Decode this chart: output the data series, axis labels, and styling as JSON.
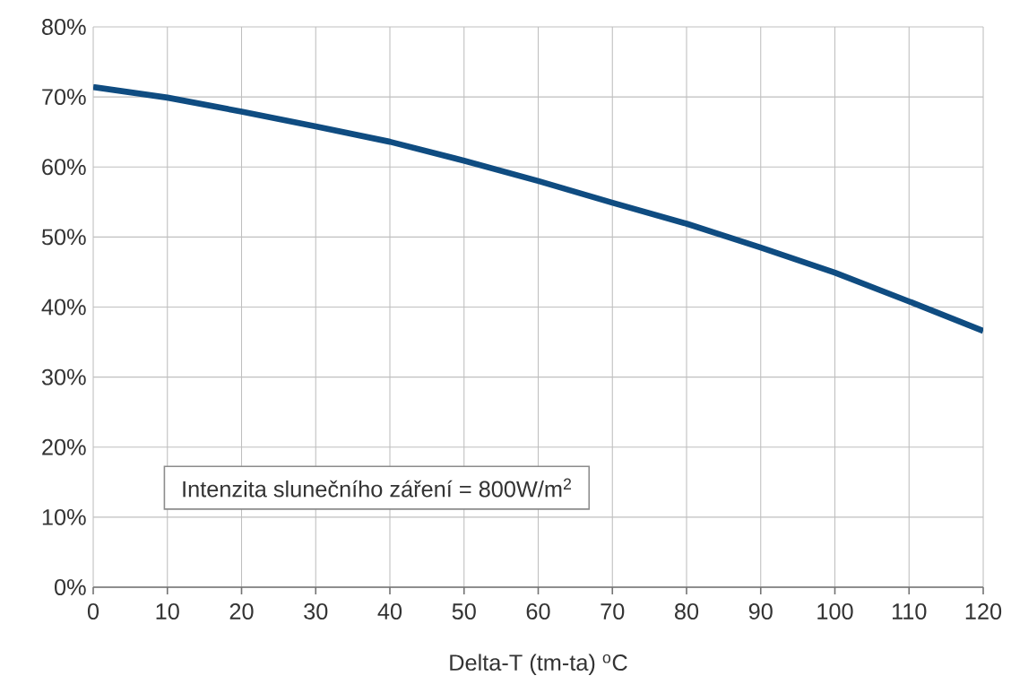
{
  "chart_data": {
    "type": "line",
    "xlabel": "Delta-T (tm-ta)  $^{o}$C",
    "x": [
      0,
      10,
      20,
      30,
      40,
      50,
      60,
      70,
      80,
      90,
      100,
      110,
      120
    ],
    "series": [
      {
        "color": "#0f4c81",
        "values": [
          71.4,
          69.9,
          67.9,
          65.8,
          63.6,
          60.9,
          58.0,
          54.9,
          51.9,
          48.5,
          44.9,
          40.8,
          36.6
        ]
      }
    ],
    "xlim": [
      0,
      120
    ],
    "xticks": [
      0,
      10,
      20,
      30,
      40,
      50,
      60,
      70,
      80,
      90,
      100,
      110,
      120
    ],
    "ylim": [
      0,
      80
    ],
    "yticks": [
      {
        "value": 0,
        "label": "0%"
      },
      {
        "value": 10,
        "label": "10%"
      },
      {
        "value": 20,
        "label": "20%"
      },
      {
        "value": 30,
        "label": "30%"
      },
      {
        "value": 40,
        "label": "40%"
      },
      {
        "value": 50,
        "label": "50%"
      },
      {
        "value": 60,
        "label": "60%"
      },
      {
        "value": 70,
        "label": "70%"
      },
      {
        "value": 80,
        "label": "80%"
      }
    ],
    "annotations": [
      "Intenzita slunečního záření = 800W/m$^{2}$"
    ],
    "grid": true,
    "marker": "none",
    "line_style": "solid"
  }
}
